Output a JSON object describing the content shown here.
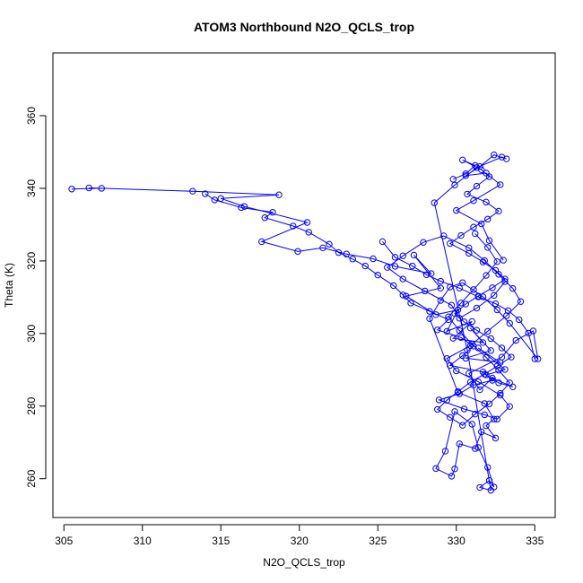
{
  "chart_data": {
    "type": "scatter",
    "title": "ATOM3 Northbound N2O_QCLS_trop",
    "xlabel": "N2O_QCLS_trop",
    "ylabel": "Theta (K)",
    "xlim": [
      304.3,
      336.3
    ],
    "ylim": [
      249.3,
      377.3
    ],
    "xticks": [
      305,
      310,
      315,
      320,
      325,
      330,
      335
    ],
    "yticks": [
      260,
      280,
      300,
      320,
      340,
      360
    ],
    "grid": false,
    "legend": "none",
    "color": "#0000ff",
    "series": [
      {
        "style": "points-connected",
        "x": [
          305.5,
          307.4,
          306.6,
          313.2,
          318.7,
          315.0,
          316.5,
          320.5,
          317.6,
          319.9,
          321.5,
          323.0,
          324.7,
          326.1,
          328.4,
          327.3,
          329.0,
          326.8,
          328.7,
          330.1,
          329.4,
          331.0,
          329.8,
          331.7,
          330.9,
          332.2,
          330.6,
          332.8,
          331.4,
          333.1,
          331.9,
          332.7,
          333.6,
          332.3,
          331.5,
          330.8,
          332.9,
          333.8,
          334.9,
          335.2,
          333.4,
          332.6,
          331.7,
          330.4,
          329.6,
          329.0,
          328.3,
          330.1,
          331.8,
          332.4,
          331.9,
          332.5,
          331.6,
          331.2,
          330.2,
          329.9,
          329.7,
          328.7,
          329.3,
          329.9,
          331.0,
          331.4,
          332.0,
          332.4,
          332.1,
          331.5,
          332.2,
          330.7,
          328.6,
          329.9,
          331.3,
          332.9,
          333.2,
          332.4,
          331.5,
          330.6,
          331.9,
          332.8,
          331.1,
          330.0,
          331.6,
          332.1,
          333.0
        ],
        "y": [
          339.8,
          340.0,
          340.1,
          339.2,
          338.2,
          337.2,
          335.0,
          330.6,
          325.3,
          322.6,
          323.6,
          321.9,
          320.6,
          318.5,
          316.5,
          321.6,
          312.5,
          310.3,
          305.2,
          306.5,
          300.6,
          303.3,
          298.7,
          297.5,
          301.5,
          295.3,
          293.2,
          292.0,
          296.0,
          290.1,
          288.6,
          286.4,
          285.3,
          287.7,
          284.5,
          289.0,
          293.5,
          298.1,
          300.7,
          293.0,
          302.8,
          306.5,
          310.1,
          314.0,
          312.8,
          309.1,
          304.1,
          283.8,
          280.7,
          276.4,
          274.6,
          271.2,
          272.9,
          268.3,
          269.6,
          262.7,
          260.7,
          262.8,
          267.6,
          278.5,
          275.0,
          268.6,
          263.1,
          257.7,
          259.5,
          257.6,
          256.8,
          295.4,
          336.0,
          340.9,
          345.7,
          348.6,
          348.1,
          349.2,
          346.0,
          343.5,
          344.2,
          341.0,
          336.6,
          333.9,
          330.2,
          325.6,
          320.2
        ]
      },
      {
        "style": "points-connected",
        "x": [
          314.0,
          314.6,
          316.3,
          318.3,
          317.8,
          319.6,
          320.6,
          321.9,
          322.5,
          323.4,
          324.2,
          325.0,
          326.0,
          326.6,
          327.1,
          328.3,
          329.5,
          328.8,
          330.3,
          331.1,
          330.4,
          329.6,
          331.7,
          332.3,
          331.1,
          330.2,
          328.9,
          330.5,
          331.8,
          332.6,
          333.4,
          332.8,
          331.4,
          330.0,
          329.4,
          330.9,
          332.0,
          333.2,
          334.1,
          333.6,
          332.7,
          331.8,
          330.8,
          329.2,
          327.9,
          326.6,
          325.6,
          326.6,
          328.0,
          329.7,
          330.2,
          331.3,
          332.4,
          333.1
        ],
        "y": [
          338.5,
          336.8,
          334.7,
          333.4,
          331.9,
          329.6,
          327.9,
          324.6,
          322.3,
          320.5,
          318.6,
          316.1,
          313.2,
          310.6,
          308.4,
          306.1,
          303.8,
          301.0,
          298.9,
          296.5,
          293.9,
          291.2,
          289.4,
          287.1,
          285.8,
          283.4,
          281.7,
          279.2,
          277.6,
          276.4,
          279.9,
          283.0,
          286.7,
          289.7,
          293.1,
          296.7,
          300.6,
          304.9,
          308.8,
          312.4,
          316.3,
          320.1,
          323.6,
          326.9,
          325.1,
          321.4,
          318.2,
          315.0,
          311.7,
          307.8,
          304.2,
          307.0,
          310.5,
          314.3
        ]
      },
      {
        "style": "points-connected",
        "x": [
          329.8,
          330.6,
          331.2,
          330.4,
          331.6,
          332.1,
          331.3,
          330.7,
          331.9,
          332.7,
          332.0,
          331.1,
          330.3,
          329.6,
          330.8,
          331.7,
          332.5,
          333.1,
          332.3,
          331.4,
          330.6,
          329.9,
          330.5,
          331.3,
          332.2,
          332.9,
          333.5,
          332.6,
          331.8,
          330.9,
          330.1,
          329.4,
          328.8,
          329.6,
          330.4,
          331.2,
          332.1,
          332.8,
          333.4,
          332.7,
          331.9,
          331.0,
          330.2,
          329.5,
          330.3,
          331.1,
          331.9,
          332.6,
          332.0,
          331.2
        ],
        "y": [
          342.5,
          344.0,
          346.3,
          347.8,
          345.1,
          343.2,
          340.6,
          338.4,
          336.2,
          333.7,
          331.5,
          329.3,
          327.0,
          324.8,
          322.1,
          319.7,
          317.4,
          315.0,
          312.6,
          310.3,
          308.1,
          305.5,
          303.2,
          300.9,
          298.6,
          296.0,
          293.5,
          291.0,
          288.8,
          286.6,
          284.0,
          281.6,
          279.1,
          276.9,
          274.7,
          277.8,
          280.6,
          283.5,
          286.4,
          289.9,
          293.4,
          297.1,
          300.8,
          304.6,
          308.4,
          312.1,
          316.0,
          319.8,
          323.7,
          327.5
        ]
      },
      {
        "style": "points-connected",
        "x": [
          325.3,
          326.1,
          327.2,
          328.1,
          329.0,
          330.2,
          331.4,
          332.5,
          333.3,
          334.0,
          334.6,
          335.0
        ],
        "y": [
          325.3,
          321.0,
          318.6,
          316.2,
          314.4,
          312.5,
          310.1,
          308.2,
          306.3,
          303.8,
          300.1,
          293.0
        ]
      }
    ]
  }
}
